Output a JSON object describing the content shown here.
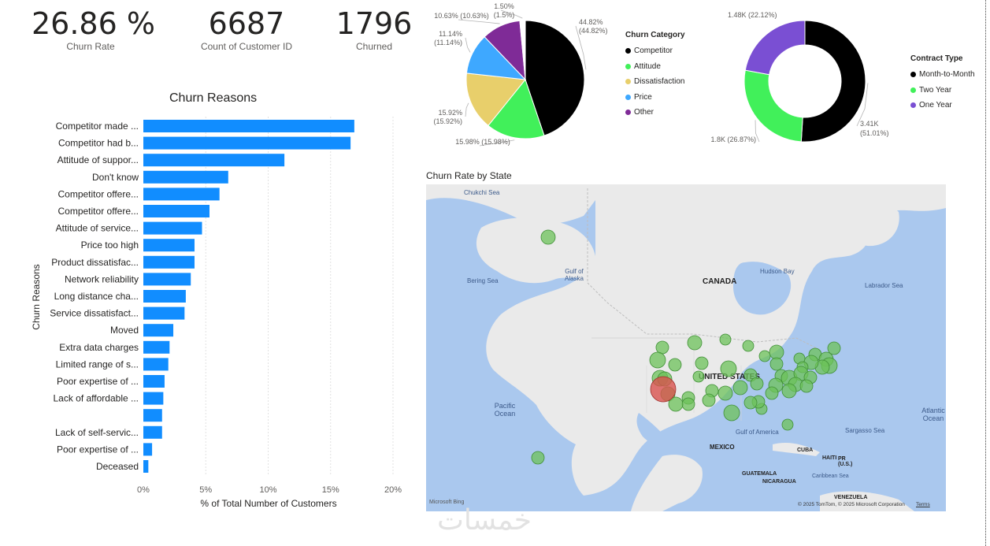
{
  "kpis": [
    {
      "value": "26.86 %",
      "label": "Churn Rate"
    },
    {
      "value": "6687",
      "label": "Count of Customer ID"
    },
    {
      "value": "1796",
      "label": "Churned"
    }
  ],
  "churn_reasons": {
    "title": "Churn Reasons",
    "ylabel": "Churn Reasons",
    "xlabel": "% of Total Number of Customers",
    "bar_color": "#118DFF",
    "x_ticks": [
      "0%",
      "5%",
      "10%",
      "15%",
      "20%"
    ]
  },
  "churn_category": {
    "legend_title": "Churn Category",
    "labels": [
      {
        "pct": "44.82%",
        "paren": "(44.82%)"
      },
      {
        "pct": "15.98%",
        "paren": "(15.98%)"
      },
      {
        "pct": "15.92%",
        "paren": "(15.92%)"
      },
      {
        "pct": "11.14%",
        "paren": "(11.14%)"
      },
      {
        "pct": "10.63%",
        "paren": "(10.63%)"
      },
      {
        "pct": "1.50%",
        "paren": "(1.5%)"
      }
    ]
  },
  "contract_type": {
    "legend_title": "Contract Type",
    "labels": [
      {
        "val": "3.41K",
        "paren": "(51.01%)"
      },
      {
        "val": "1.8K",
        "paren": "(26.87%)"
      },
      {
        "val": "1.48K",
        "paren": "(22.12%)"
      }
    ]
  },
  "map": {
    "title": "Churn Rate by State",
    "labels": {
      "chukchi": "Chukchi Sea",
      "bering": "Bering Sea",
      "gulf_alaska": "Gulf of Alaska",
      "canada": "CANADA",
      "hudson": "Hudson Bay",
      "labrador": "Labrador Sea",
      "us": "UNITED STATES",
      "pacific": "Pacific Ocean",
      "atlantic": "Atlantic Ocean",
      "gulf_mexico": "Gulf of America",
      "sargasso": "Sargasso Sea",
      "mexico": "MEXICO",
      "cuba": "CUBA",
      "haiti": "HAITI",
      "pr": "PR (U.S.)",
      "guatemala": "GUATEMALA",
      "caribbean": "Caribbean Sea",
      "nicaragua": "NICARAGUA",
      "venezuela": "VENEZUELA",
      "bing": "Microsoft Bing",
      "copyright": "© 2025 TomTom, © 2025 Microsoft Corporation",
      "terms": "Terms"
    },
    "colors": {
      "normal": "#6cc25a",
      "highlight": "#d9534f",
      "water": "#aac8ee",
      "land": "#eaeaea"
    }
  },
  "watermark": "خمسات",
  "chart_data": [
    {
      "type": "bar",
      "orientation": "horizontal",
      "title": "Churn Reasons",
      "xlabel": "% of Total Number of Customers",
      "ylabel": "Churn Reasons",
      "xlim": [
        0,
        20
      ],
      "categories": [
        "Competitor made ...",
        "Competitor had b...",
        "Attitude of suppor...",
        "Don't know",
        "Competitor offere...",
        "Competitor offere...",
        "Attitude of service...",
        "Price too high",
        "Product dissatisfac...",
        "Network reliability",
        "Long distance cha...",
        "Service dissatisfact...",
        "Moved",
        "Extra data charges",
        "Limited range of s...",
        "Poor expertise of ...",
        "Lack of affordable ...",
        "",
        "Lack of self-servic...",
        "Poor expertise of ...",
        "Deceased"
      ],
      "values": [
        16.9,
        16.6,
        11.3,
        6.8,
        6.1,
        5.3,
        4.7,
        4.1,
        4.1,
        3.8,
        3.4,
        3.3,
        2.4,
        2.1,
        2.0,
        1.7,
        1.6,
        1.5,
        1.5,
        0.7,
        0.4
      ]
    },
    {
      "type": "pie",
      "title": "",
      "legend_title": "Churn Category",
      "legend_placement": "right",
      "categories": [
        "Competitor",
        "Attitude",
        "Dissatisfaction",
        "Price",
        "Other",
        ""
      ],
      "values": [
        44.82,
        15.98,
        15.92,
        11.14,
        10.63,
        1.5
      ],
      "colors": [
        "#000000",
        "#41f05a",
        "#e8cf6b",
        "#3ea8ff",
        "#7f2b97",
        "#ffffff"
      ]
    },
    {
      "type": "pie",
      "donut": true,
      "title": "",
      "legend_title": "Contract Type",
      "legend_placement": "right",
      "categories": [
        "Month-to-Month",
        "Two Year",
        "One Year"
      ],
      "values": [
        3410,
        1800,
        1480
      ],
      "percent": [
        51.01,
        26.87,
        22.12
      ],
      "colors": [
        "#000000",
        "#41f05a",
        "#7a4fd3"
      ]
    }
  ]
}
